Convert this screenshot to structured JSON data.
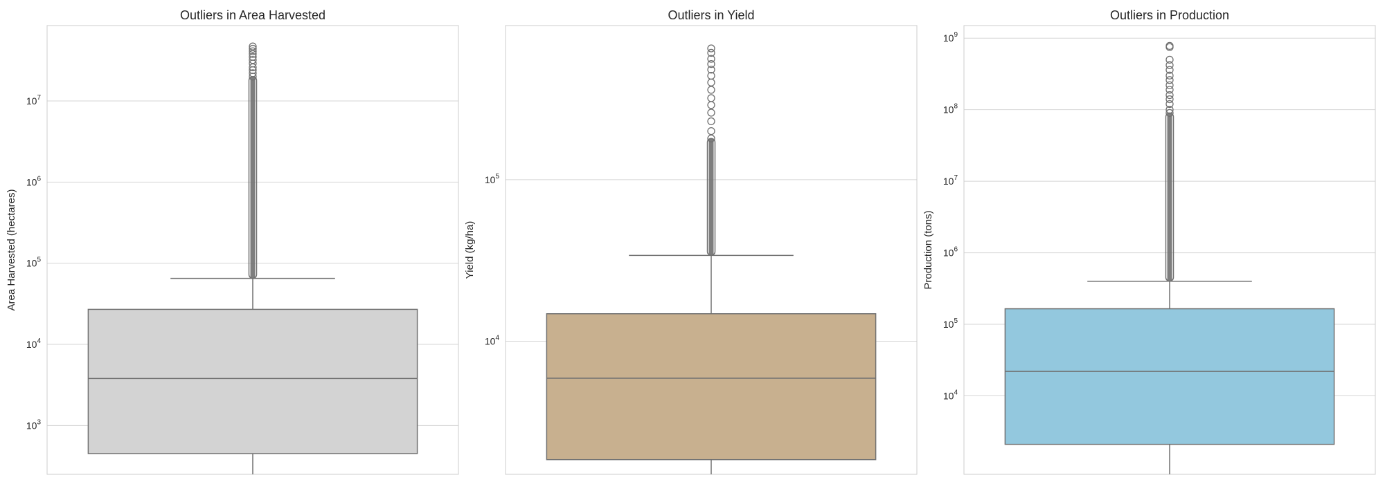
{
  "chart_data": [
    {
      "type": "box",
      "title": "Outliers in Area Harvested",
      "xlabel": "",
      "ylabel": "Area Harvested (hectares)",
      "yscale": "log",
      "ylim": [
        250,
        85000000
      ],
      "yticks": [
        {
          "value": 1000,
          "base": "10",
          "exp": "3"
        },
        {
          "value": 10000,
          "base": "10",
          "exp": "4"
        },
        {
          "value": 100000,
          "base": "10",
          "exp": "5"
        },
        {
          "value": 1000000,
          "base": "10",
          "exp": "6"
        },
        {
          "value": 10000000,
          "base": "10",
          "exp": "7"
        }
      ],
      "box": {
        "q1": 450,
        "median": 3800,
        "q3": 27000,
        "whisker_low": 250,
        "whisker_high": 65000,
        "outlier_min": 65000,
        "outlier_max": 47000000
      },
      "color": "#d3d3d3",
      "outliers_sparse": [
        47000000,
        44000000,
        41000000,
        38000000,
        35000000,
        32000000,
        29000000,
        26000000,
        24000000,
        22000000,
        20000000
      ]
    },
    {
      "type": "box",
      "title": "Outliers in Yield",
      "xlabel": "",
      "ylabel": "Yield (kg/ha)",
      "yscale": "log",
      "ylim": [
        1500,
        900000
      ],
      "yticks": [
        {
          "value": 10000,
          "base": "10",
          "exp": "4"
        },
        {
          "value": 100000,
          "base": "10",
          "exp": "5"
        }
      ],
      "box": {
        "q1": 1850,
        "median": 5900,
        "q3": 14800,
        "whisker_low": 1500,
        "whisker_high": 34000,
        "outlier_min": 34000,
        "outlier_max": 650000
      },
      "color": "#c8b08f",
      "outliers_sparse": [
        650000,
        610000,
        560000,
        520000,
        480000,
        440000,
        400000,
        360000,
        320000,
        290000,
        260000,
        230000,
        200000,
        180000
      ]
    },
    {
      "type": "box",
      "title": "Outliers in Production",
      "xlabel": "",
      "ylabel": "Production (tons)",
      "yscale": "log",
      "ylim": [
        800,
        1500000000
      ],
      "yticks": [
        {
          "value": 10000,
          "base": "10",
          "exp": "4"
        },
        {
          "value": 100000,
          "base": "10",
          "exp": "5"
        },
        {
          "value": 1000000,
          "base": "10",
          "exp": "6"
        },
        {
          "value": 10000000,
          "base": "10",
          "exp": "7"
        },
        {
          "value": 100000000,
          "base": "10",
          "exp": "8"
        },
        {
          "value": 1000000000,
          "base": "10",
          "exp": "9"
        }
      ],
      "box": {
        "q1": 2100,
        "median": 22000,
        "q3": 165000,
        "whisker_low": 800,
        "whisker_high": 400000,
        "outlier_min": 400000,
        "outlier_max": 780000000
      },
      "color": "#93c8de",
      "outliers_sparse": [
        780000000,
        750000000,
        500000000,
        420000000,
        360000000,
        300000000,
        260000000,
        220000000,
        190000000,
        160000000,
        140000000,
        120000000,
        100000000,
        90000000
      ]
    }
  ]
}
